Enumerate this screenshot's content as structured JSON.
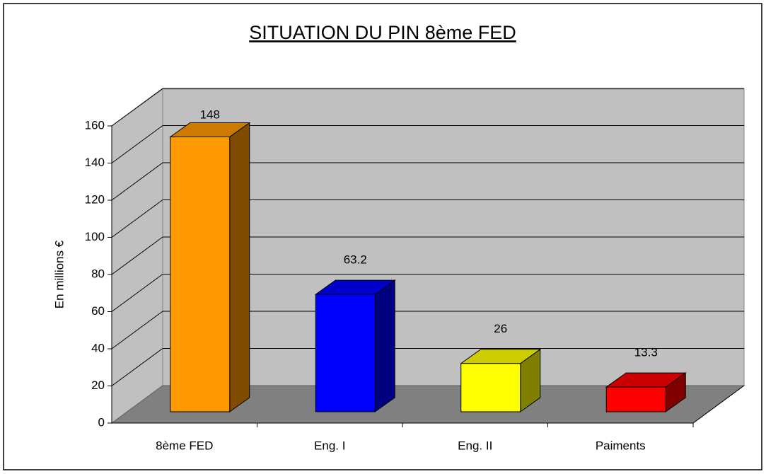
{
  "chart_data": {
    "type": "bar3d",
    "title": "SITUATION DU PIN 8ème FED",
    "ylabel": "En millions €",
    "categories": [
      "8ème FED",
      "Eng. I",
      "Eng. II",
      "Paiments"
    ],
    "values": [
      148,
      63.2,
      26,
      13.3
    ],
    "colors": [
      "#ff9900",
      "#0000ff",
      "#ffff00",
      "#ff0000"
    ],
    "ylim": [
      0,
      160
    ],
    "yticks": [
      0,
      20,
      40,
      60,
      80,
      100,
      120,
      140,
      160
    ],
    "grid": true
  }
}
